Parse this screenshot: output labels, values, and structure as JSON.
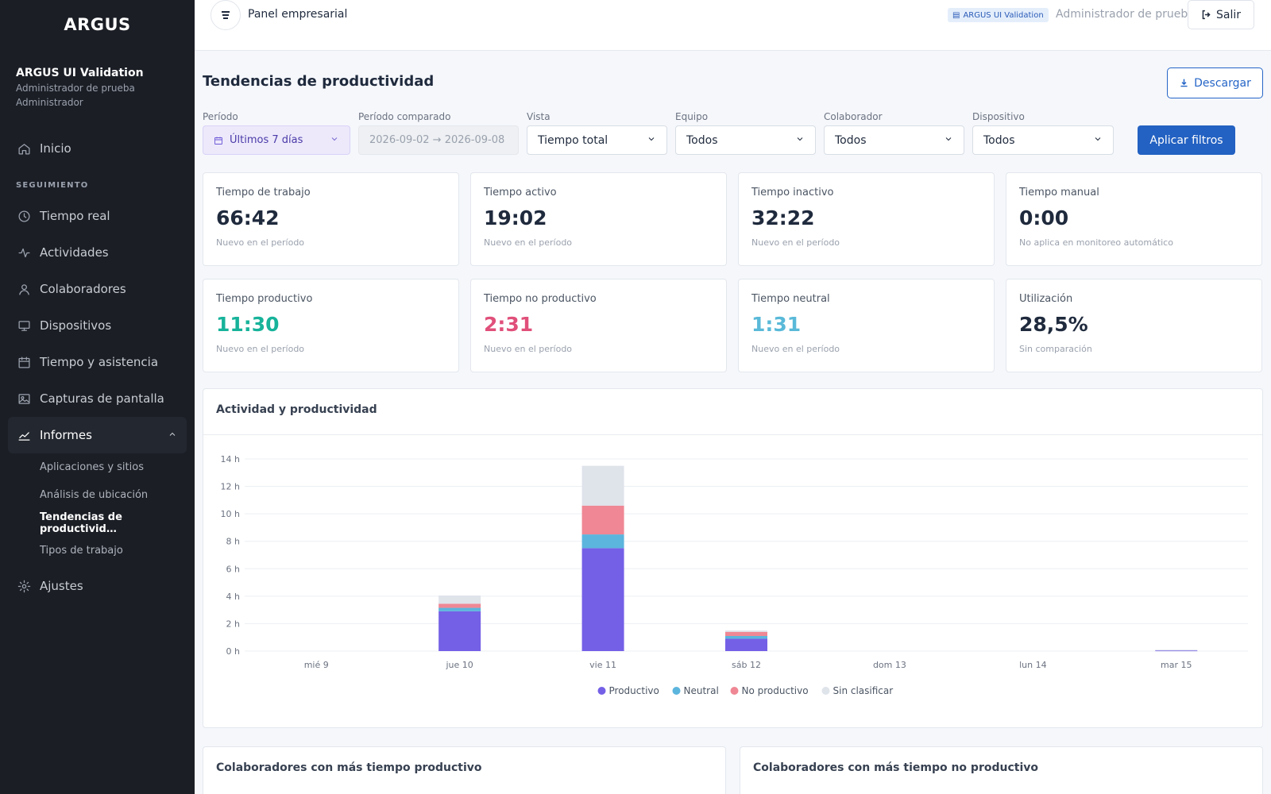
{
  "sidebar": {
    "brand": "ARGUS",
    "org_name": "ARGUS UI Validation",
    "user_name": "Administrador de prueba",
    "role": "Administrador",
    "home_label": "Inicio",
    "section_label": "SEGUIMIENTO",
    "items": [
      {
        "label": "Tiempo real",
        "icon": "clock-icon"
      },
      {
        "label": "Actividades",
        "icon": "activity-icon"
      },
      {
        "label": "Colaboradores",
        "icon": "user-icon"
      },
      {
        "label": "Dispositivos",
        "icon": "monitor-icon"
      },
      {
        "label": "Tiempo y asistencia",
        "icon": "calendar-icon"
      },
      {
        "label": "Capturas de pantalla",
        "icon": "image-icon"
      }
    ],
    "reports_label": "Informes",
    "report_subitems": [
      "Aplicaciones y sitios",
      "Análisis de ubicación",
      "Tendencias de productivid…",
      "Tipos de trabajo"
    ],
    "settings_label": "Ajustes"
  },
  "topbar": {
    "panel_title": "Panel empresarial",
    "org_badge": "ARGUS UI Validation",
    "user_label": "Administrador de prueba",
    "logout_label": "Salir"
  },
  "page": {
    "title": "Tendencias de productividad",
    "download_label": "Descargar"
  },
  "filters": {
    "period_label": "Período",
    "period_value": "Últimos 7 días",
    "compare_label": "Período comparado",
    "compare_value": "2026-09-02 → 2026-09-08",
    "view_label": "Vista",
    "view_value": "Tiempo total",
    "team_label": "Equipo",
    "team_value": "Todos",
    "collab_label": "Colaborador",
    "collab_value": "Todos",
    "device_label": "Dispositivo",
    "device_value": "Todos",
    "apply_label": "Aplicar filtros"
  },
  "cards": [
    {
      "label": "Tiempo de trabajo",
      "value": "66:42",
      "sub": "Nuevo en el período",
      "color": "#1f2a3d"
    },
    {
      "label": "Tiempo activo",
      "value": "19:02",
      "sub": "Nuevo en el período",
      "color": "#1f2a3d"
    },
    {
      "label": "Tiempo inactivo",
      "value": "32:22",
      "sub": "Nuevo en el período",
      "color": "#1f2a3d"
    },
    {
      "label": "Tiempo manual",
      "value": "0:00",
      "sub": "No aplica en monitoreo automático",
      "color": "#1f2a3d"
    },
    {
      "label": "Tiempo productivo",
      "value": "11:30",
      "sub": "Nuevo en el período",
      "color": "#17b39a"
    },
    {
      "label": "Tiempo no productivo",
      "value": "2:31",
      "sub": "Nuevo en el período",
      "color": "#e0507a"
    },
    {
      "label": "Tiempo neutral",
      "value": "1:31",
      "sub": "Nuevo en el período",
      "color": "#5ab9d8"
    },
    {
      "label": "Utilización",
      "value": "28,5%",
      "sub": "Sin comparación",
      "color": "#1f2a3d"
    }
  ],
  "chart": {
    "title": "Actividad y productividad"
  },
  "chart_data": {
    "type": "bar",
    "stacked": true,
    "categories": [
      "mié 9",
      "jue 10",
      "vie 11",
      "sáb 12",
      "dom 13",
      "lun 14",
      "mar 15"
    ],
    "series": [
      {
        "name": "Productivo",
        "color": "#7460e6",
        "values": [
          0,
          2.9,
          7.5,
          0.9,
          0,
          0,
          0.05
        ]
      },
      {
        "name": "Neutral",
        "color": "#5cb5dd",
        "values": [
          0,
          0.25,
          1.0,
          0.2,
          0,
          0,
          0
        ]
      },
      {
        "name": "No productivo",
        "color": "#ef8794",
        "values": [
          0,
          0.3,
          2.1,
          0.3,
          0,
          0,
          0
        ]
      },
      {
        "name": "Sin clasificar",
        "color": "#dfe3ea",
        "values": [
          0,
          0.6,
          2.9,
          0.1,
          0,
          0,
          0.05
        ]
      }
    ],
    "y_ticks": [
      "0 h",
      "2 h",
      "4 h",
      "6 h",
      "8 h",
      "10 h",
      "12 h",
      "14 h"
    ],
    "ylim": [
      0,
      14
    ],
    "grid": true,
    "legend": "bottom-center"
  },
  "bottom": {
    "left_title": "Colaboradores con más tiempo productivo",
    "right_title": "Colaboradores con más tiempo no productivo"
  }
}
